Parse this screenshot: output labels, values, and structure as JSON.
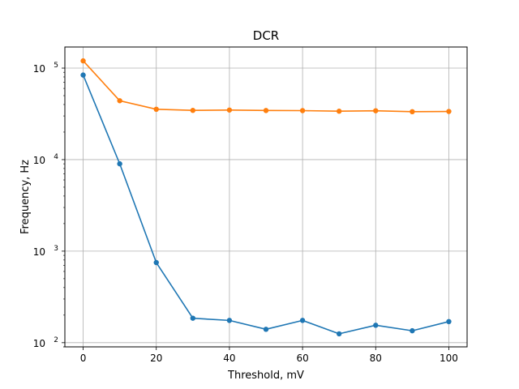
{
  "chart_data": {
    "type": "line",
    "title": "DCR",
    "xlabel": "Threshold, mV",
    "ylabel": "Frequency, Hz",
    "xlim": [
      -5,
      105
    ],
    "ylim": [
      90,
      170000
    ],
    "yscale": "log",
    "grid": true,
    "x_ticks": [
      0,
      20,
      40,
      60,
      80,
      100
    ],
    "y_ticks": [
      {
        "value": 100,
        "base": "10",
        "exp": "2"
      },
      {
        "value": 1000,
        "base": "10",
        "exp": "3"
      },
      {
        "value": 10000,
        "base": "10",
        "exp": "4"
      },
      {
        "value": 100000,
        "base": "10",
        "exp": "5"
      }
    ],
    "x": [
      0,
      10,
      20,
      30,
      40,
      50,
      60,
      70,
      80,
      90,
      100
    ],
    "series": [
      {
        "color": "#1f77b4",
        "values": [
          84000,
          9000,
          750,
          185,
          175,
          140,
          175,
          125,
          155,
          135,
          170
        ]
      },
      {
        "color": "#ff7f0e",
        "values": [
          120000,
          44000,
          35500,
          34500,
          34800,
          34400,
          34300,
          33800,
          34200,
          33400,
          33600
        ]
      }
    ]
  }
}
